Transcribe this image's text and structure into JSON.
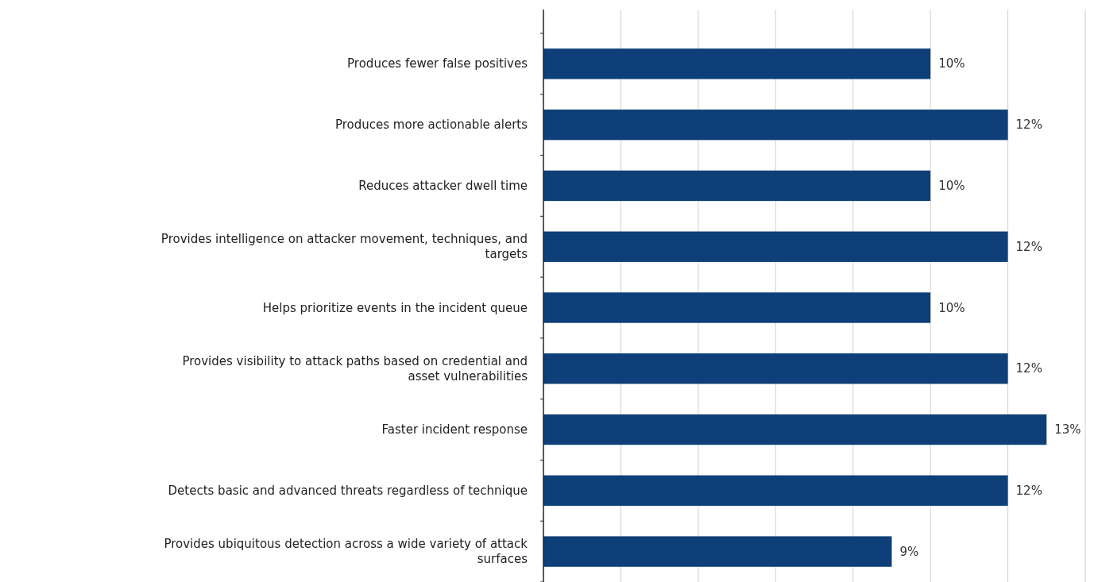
{
  "chart_data": {
    "type": "bar",
    "orientation": "horizontal",
    "categories": [
      "Produces fewer false positives",
      "Produces more actionable alerts",
      "Reduces attacker dwell time",
      "Provides intelligence on attacker movement, techniques, and targets",
      "Helps prioritize events in the incident queue",
      "Provides visibility to attack paths based on credential and asset vulnerabilities",
      "Faster incident response",
      "Detects basic and advanced threats regardless of technique",
      "Provides ubiquitous detection across a wide variety of attack surfaces"
    ],
    "values": [
      10,
      12,
      10,
      12,
      10,
      12,
      13,
      12,
      9
    ],
    "value_labels": [
      "10%",
      "12%",
      "10%",
      "12%",
      "10%",
      "12%",
      "13%",
      "12%",
      "9%"
    ],
    "color": "#0e3f78",
    "xlim": [
      0,
      14
    ],
    "xticks": [
      {
        "value": 0,
        "label": null
      },
      {
        "value": 2,
        "label": null
      },
      {
        "value": 4,
        "label": null
      },
      {
        "value": 6,
        "label": null
      },
      {
        "value": 8,
        "label": null
      },
      {
        "value": 10,
        "label": null
      },
      {
        "value": 12,
        "label": null
      },
      {
        "value": 14,
        "label": null
      }
    ],
    "grid": "x",
    "tick_labels": "y"
  }
}
